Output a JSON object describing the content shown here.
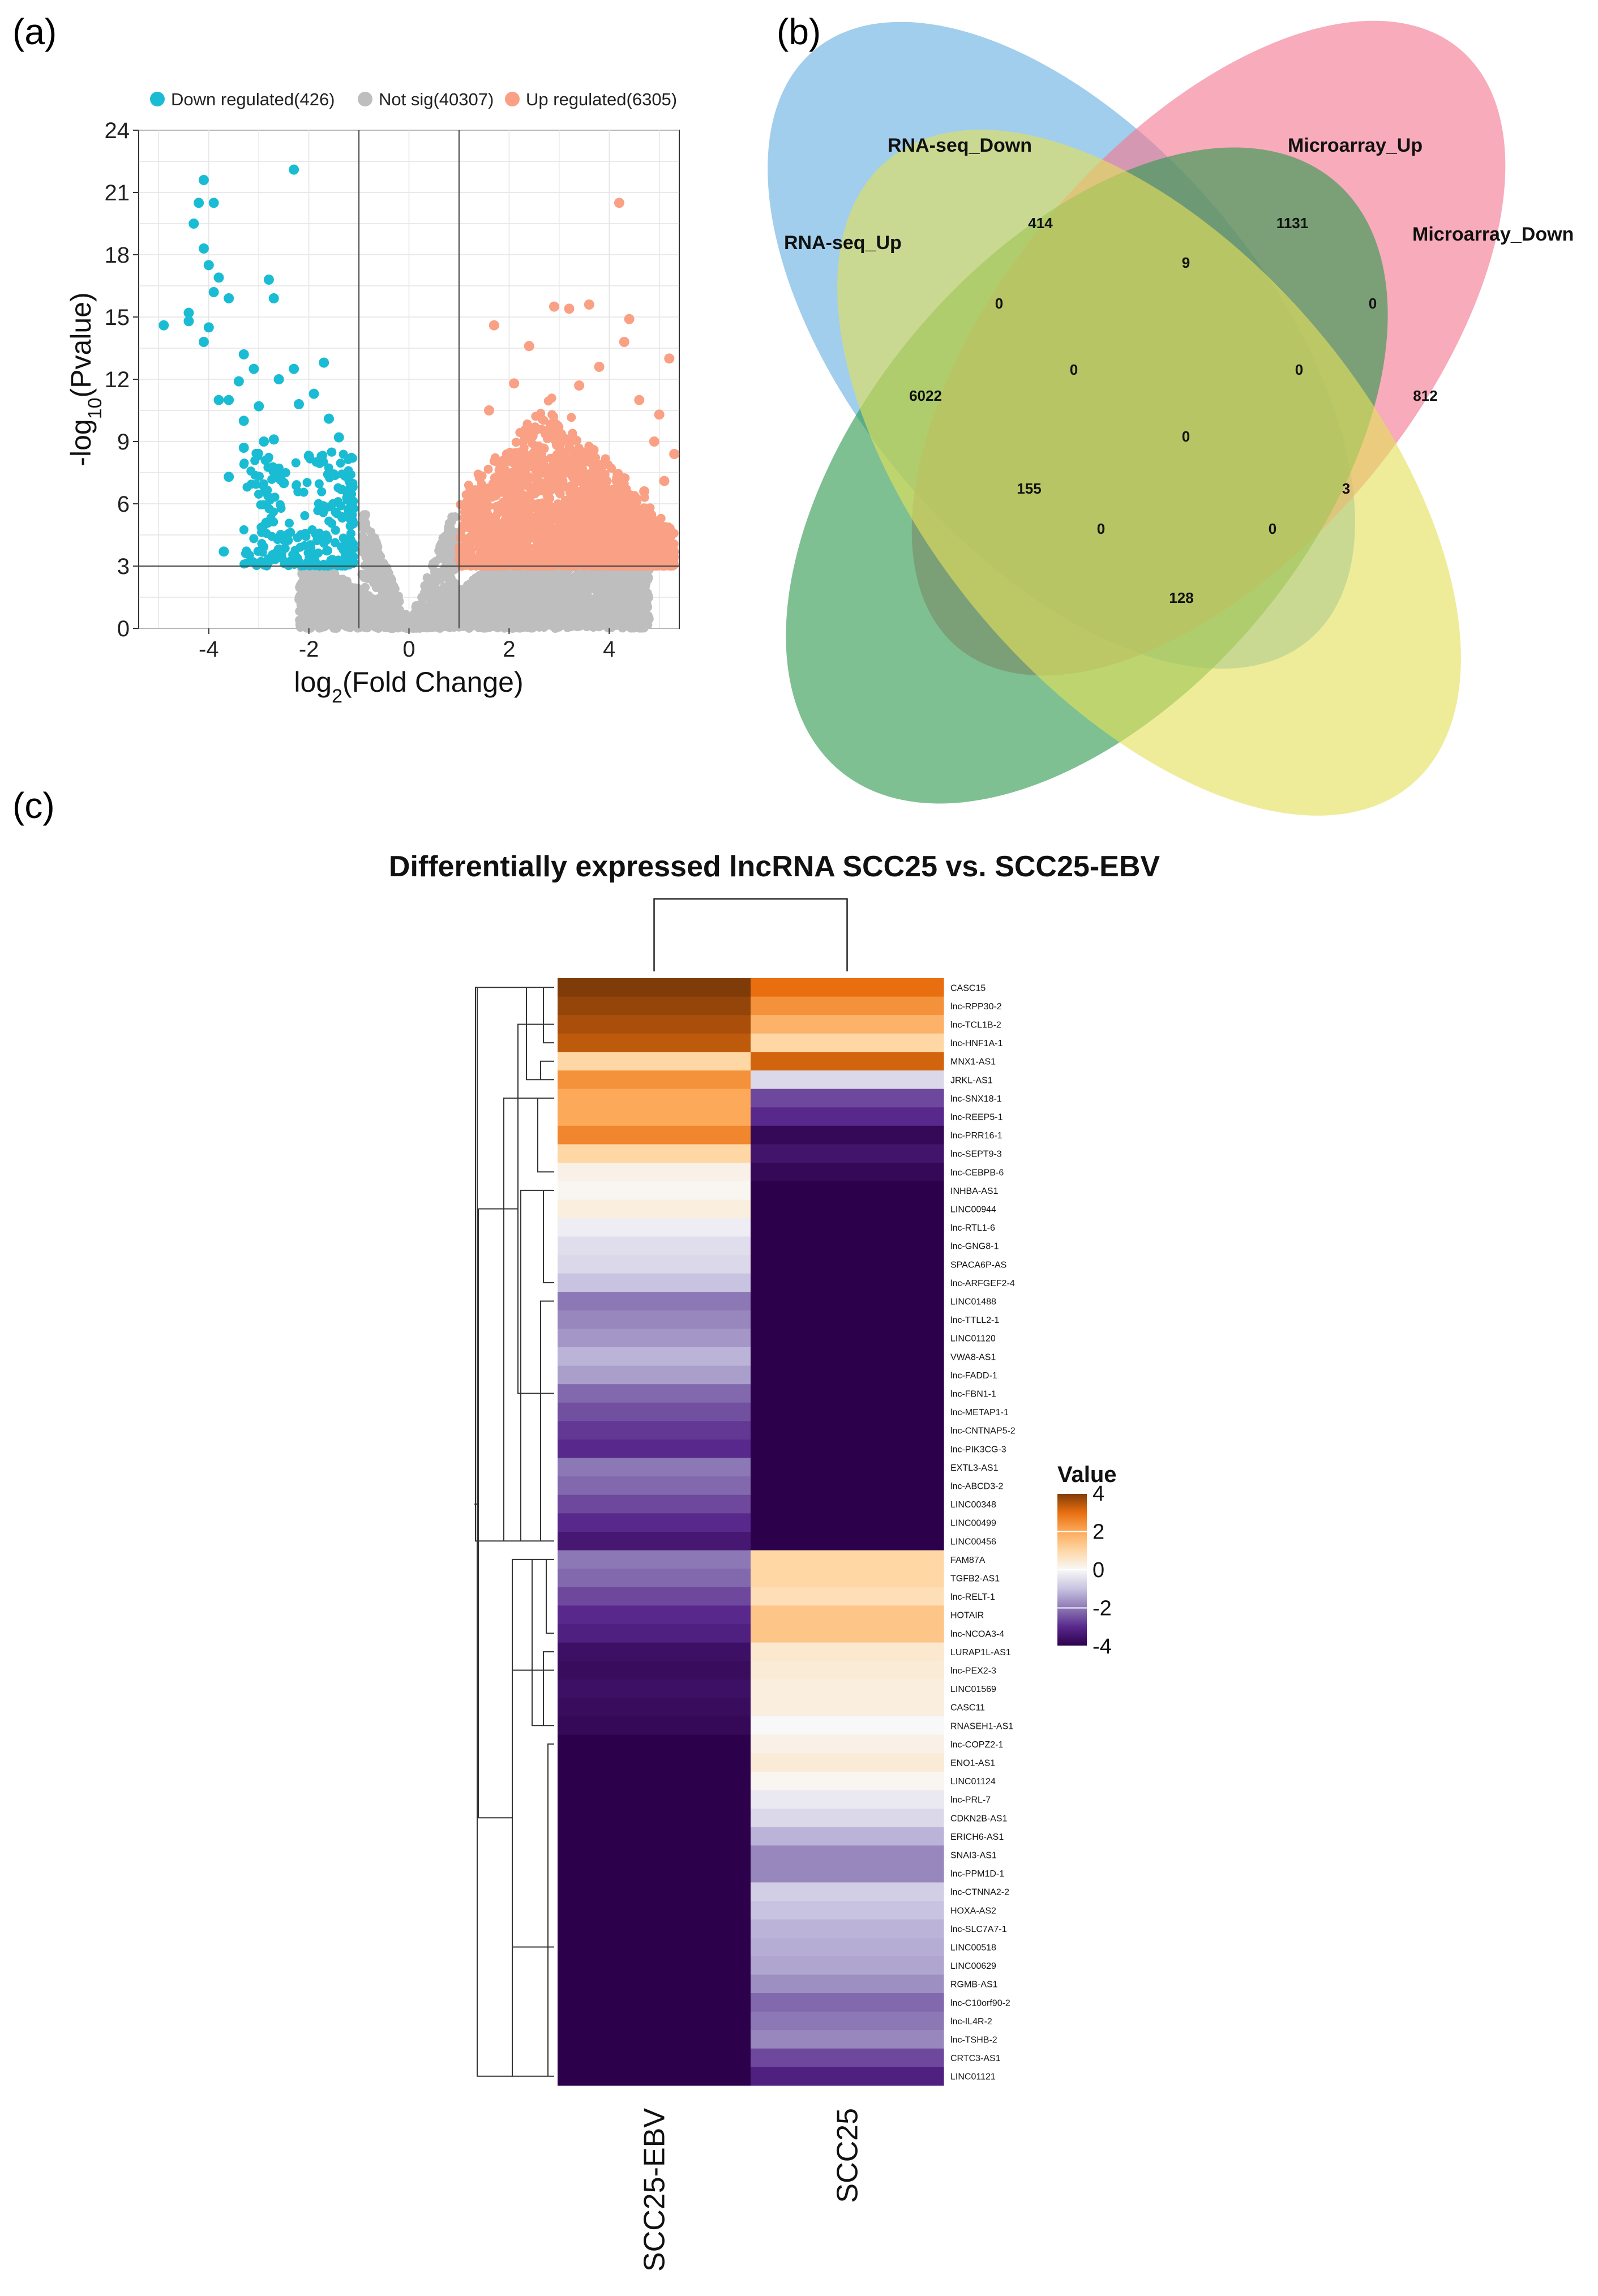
{
  "panels": {
    "a": "(a)",
    "b": "(b)",
    "c": "(c)"
  },
  "colors": {
    "down": "#1ABCD4",
    "notsig": "#BEBEBE",
    "up": "#F9A085",
    "rnaseq_down": "#6FB4E3",
    "microarray_up": "#F4778F",
    "microarray_down": "#E3E05A",
    "rnaseq_up": "#2E9A4F"
  },
  "chart_data": [
    {
      "type": "scatter",
      "panel": "a",
      "xlabel": "log2(Fold Change)",
      "ylabel": "-log10(Pvalue)",
      "xlim": [
        -5.4,
        5.4
      ],
      "ylim": [
        0,
        24
      ],
      "x_ticks": [
        "-4",
        "-2",
        "0",
        "2",
        "4"
      ],
      "y_ticks": [
        "0",
        "3",
        "6",
        "9",
        "12",
        "15",
        "18",
        "21",
        "24"
      ],
      "thresholds": {
        "fold_change": [
          -1,
          1
        ],
        "pvalue": 3
      },
      "legend": [
        {
          "key": "down",
          "label": "Down regulated(426)"
        },
        {
          "key": "notsig",
          "label": "Not sig(40307)"
        },
        {
          "key": "up",
          "label": "Up regulated(6305)"
        }
      ],
      "highlight_points": {
        "down": [
          [
            -4.1,
            21.6
          ],
          [
            -4.2,
            20.5
          ],
          [
            -3.9,
            20.5
          ],
          [
            -2.3,
            22.1
          ],
          [
            -4.3,
            19.5
          ],
          [
            -4.1,
            18.3
          ],
          [
            -4.0,
            17.5
          ],
          [
            -3.8,
            16.9
          ],
          [
            -2.8,
            16.8
          ],
          [
            -3.9,
            16.2
          ],
          [
            -3.6,
            15.9
          ],
          [
            -2.7,
            15.9
          ],
          [
            -4.4,
            15.2
          ],
          [
            -4.0,
            14.5
          ],
          [
            -4.4,
            14.8
          ],
          [
            -4.9,
            14.6
          ],
          [
            -4.1,
            13.8
          ],
          [
            -3.3,
            13.2
          ],
          [
            -3.1,
            12.5
          ],
          [
            -1.7,
            12.8
          ],
          [
            -2.3,
            12.5
          ],
          [
            -3.4,
            11.9
          ],
          [
            -2.6,
            12.0
          ],
          [
            -3.8,
            11.0
          ],
          [
            -3.6,
            11.0
          ],
          [
            -1.9,
            11.3
          ],
          [
            -3.0,
            10.7
          ],
          [
            -2.2,
            10.8
          ],
          [
            -3.3,
            10.0
          ],
          [
            -1.6,
            10.1
          ],
          [
            -2.7,
            9.1
          ],
          [
            -2.9,
            9.0
          ],
          [
            -1.4,
            9.2
          ],
          [
            -3.3,
            8.7
          ],
          [
            -2.0,
            8.3
          ],
          [
            -3.6,
            7.3
          ],
          [
            -2.5,
            7.0
          ],
          [
            -3.7,
            3.7
          ],
          [
            -2.6,
            3.8
          ],
          [
            -1.9,
            3.3
          ]
        ],
        "up": [
          [
            4.2,
            20.5
          ],
          [
            1.7,
            14.6
          ],
          [
            2.9,
            15.5
          ],
          [
            3.2,
            15.4
          ],
          [
            3.6,
            15.6
          ],
          [
            2.4,
            13.6
          ],
          [
            4.4,
            14.9
          ],
          [
            5.2,
            13.0
          ],
          [
            4.3,
            13.8
          ],
          [
            3.8,
            12.6
          ],
          [
            2.1,
            11.8
          ],
          [
            3.4,
            11.7
          ],
          [
            4.6,
            11.0
          ],
          [
            5.0,
            10.3
          ],
          [
            1.6,
            10.5
          ],
          [
            4.9,
            9.0
          ],
          [
            5.3,
            8.4
          ],
          [
            5.1,
            7.1
          ],
          [
            4.7,
            6.6
          ]
        ]
      }
    },
    {
      "type": "venn",
      "panel": "b",
      "sets": [
        "RNA-seq_Down",
        "Microarray_Up",
        "RNA-seq_Up",
        "Microarray_Down"
      ],
      "counts": {
        "rnaseq_down_only": "414",
        "microarray_up_only": "1131",
        "rnaseq_up_only": "6022",
        "microarray_down_only": "812",
        "rsdown_maup": "9",
        "rsup_rsdown": "0",
        "madown_maup": "0",
        "rsup_rsdown_maup": "0",
        "rsdown_maup_madown": "0",
        "all_four": "0",
        "rsup_maup": "155",
        "rsdown_madown": "3",
        "rsup_maup_madown": "0",
        "rsup_rsdown_madown": "0",
        "rsup_madown": "128"
      }
    },
    {
      "type": "heatmap",
      "panel": "c",
      "title": "Differentially expressed lncRNA SCC25 vs. SCC25-EBV",
      "columns": [
        "SCC25-EBV",
        "SCC25"
      ],
      "legend": {
        "title": "Value",
        "ticks": [
          "4",
          "2",
          "0",
          "-2",
          "-4"
        ],
        "range": [
          -4,
          4
        ]
      },
      "rows": [
        {
          "name": "CASC15",
          "values": [
            4.0,
            3.0
          ]
        },
        {
          "name": "lnc-RPP30-2",
          "values": [
            3.8,
            2.4
          ]
        },
        {
          "name": "lnc-TCL1B-2",
          "values": [
            3.6,
            1.8
          ]
        },
        {
          "name": "lnc-HNF1A-1",
          "values": [
            3.4,
            1.0
          ]
        },
        {
          "name": "MNX1-AS1",
          "values": [
            1.0,
            3.2
          ]
        },
        {
          "name": "JRKL-AS1",
          "values": [
            2.4,
            -0.6
          ]
        },
        {
          "name": "lnc-SNX18-1",
          "values": [
            2.0,
            -2.6
          ]
        },
        {
          "name": "lnc-REEP5-1",
          "values": [
            2.0,
            -3.0
          ]
        },
        {
          "name": "lnc-PRR16-1",
          "values": [
            2.6,
            -3.8
          ]
        },
        {
          "name": "lnc-SEPT9-3",
          "values": [
            1.0,
            -3.5
          ]
        },
        {
          "name": "lnc-CEBPB-6",
          "values": [
            0.2,
            -3.8
          ]
        },
        {
          "name": "INHBA-AS1",
          "values": [
            0.1,
            -4.0
          ]
        },
        {
          "name": "LINC00944",
          "values": [
            0.3,
            -4.0
          ]
        },
        {
          "name": "lnc-RTL1-6",
          "values": [
            -0.2,
            -4.0
          ]
        },
        {
          "name": "lnc-GNG8-1",
          "values": [
            -0.5,
            -4.0
          ]
        },
        {
          "name": "SPACA6P-AS",
          "values": [
            -0.6,
            -4.0
          ]
        },
        {
          "name": "lnc-ARFGEF2-4",
          "values": [
            -1.0,
            -4.0
          ]
        },
        {
          "name": "LINC01488",
          "values": [
            -2.0,
            -4.0
          ]
        },
        {
          "name": "lnc-TTLL2-1",
          "values": [
            -1.8,
            -4.0
          ]
        },
        {
          "name": "LINC01120",
          "values": [
            -1.6,
            -4.0
          ]
        },
        {
          "name": "VWA8-AS1",
          "values": [
            -1.2,
            -4.0
          ]
        },
        {
          "name": "lnc-FADD-1",
          "values": [
            -1.5,
            -4.0
          ]
        },
        {
          "name": "lnc-FBN1-1",
          "values": [
            -2.2,
            -4.0
          ]
        },
        {
          "name": "lnc-METAP1-1",
          "values": [
            -2.5,
            -4.0
          ]
        },
        {
          "name": "lnc-CNTNAP5-2",
          "values": [
            -2.8,
            -4.0
          ]
        },
        {
          "name": "lnc-PIK3CG-3",
          "values": [
            -3.0,
            -4.0
          ]
        },
        {
          "name": "EXTL3-AS1",
          "values": [
            -2.0,
            -4.0
          ]
        },
        {
          "name": "lnc-ABCD3-2",
          "values": [
            -2.2,
            -4.0
          ]
        },
        {
          "name": "LINC00348",
          "values": [
            -2.6,
            -4.0
          ]
        },
        {
          "name": "LINC00499",
          "values": [
            -3.0,
            -4.0
          ]
        },
        {
          "name": "LINC00456",
          "values": [
            -3.4,
            -4.0
          ]
        },
        {
          "name": "FAM87A",
          "values": [
            -2.0,
            1.0
          ]
        },
        {
          "name": "TGFB2-AS1",
          "values": [
            -2.2,
            1.0
          ]
        },
        {
          "name": "lnc-RELT-1",
          "values": [
            -2.6,
            0.8
          ]
        },
        {
          "name": "HOTAIR",
          "values": [
            -3.0,
            1.4
          ]
        },
        {
          "name": "lnc-NCOA3-4",
          "values": [
            -3.2,
            1.4
          ]
        },
        {
          "name": "LURAP1L-AS1",
          "values": [
            -3.6,
            0.5
          ]
        },
        {
          "name": "lnc-PEX2-3",
          "values": [
            -3.7,
            0.4
          ]
        },
        {
          "name": "LINC01569",
          "values": [
            -3.6,
            0.3
          ]
        },
        {
          "name": "CASC11",
          "values": [
            -3.7,
            0.3
          ]
        },
        {
          "name": "RNASEH1-AS1",
          "values": [
            -3.8,
            0.0
          ]
        },
        {
          "name": "lnc-COPZ2-1",
          "values": [
            -4.0,
            0.2
          ]
        },
        {
          "name": "ENO1-AS1",
          "values": [
            -4.0,
            0.4
          ]
        },
        {
          "name": "LINC01124",
          "values": [
            -4.0,
            0.1
          ]
        },
        {
          "name": "lnc-PRL-7",
          "values": [
            -4.0,
            -0.3
          ]
        },
        {
          "name": "CDKN2B-AS1",
          "values": [
            -4.0,
            -0.6
          ]
        },
        {
          "name": "ERICH6-AS1",
          "values": [
            -4.0,
            -1.2
          ]
        },
        {
          "name": "SNAI3-AS1",
          "values": [
            -4.0,
            -1.8
          ]
        },
        {
          "name": "lnc-PPM1D-1",
          "values": [
            -4.0,
            -1.8
          ]
        },
        {
          "name": "lnc-CTNNA2-2",
          "values": [
            -4.0,
            -0.8
          ]
        },
        {
          "name": "HOXA-AS2",
          "values": [
            -4.0,
            -1.0
          ]
        },
        {
          "name": "lnc-SLC7A7-1",
          "values": [
            -4.0,
            -1.2
          ]
        },
        {
          "name": "LINC00518",
          "values": [
            -4.0,
            -1.3
          ]
        },
        {
          "name": "LINC00629",
          "values": [
            -4.0,
            -1.4
          ]
        },
        {
          "name": "RGMB-AS1",
          "values": [
            -4.0,
            -1.7
          ]
        },
        {
          "name": "lnc-C10orf90-2",
          "values": [
            -4.0,
            -2.2
          ]
        },
        {
          "name": "lnc-IL4R-2",
          "values": [
            -4.0,
            -2.0
          ]
        },
        {
          "name": "lnc-TSHB-2",
          "values": [
            -4.0,
            -1.8
          ]
        },
        {
          "name": "CRTC3-AS1",
          "values": [
            -4.0,
            -2.6
          ]
        },
        {
          "name": "LINC01121",
          "values": [
            -4.0,
            -3.2
          ]
        }
      ]
    }
  ]
}
